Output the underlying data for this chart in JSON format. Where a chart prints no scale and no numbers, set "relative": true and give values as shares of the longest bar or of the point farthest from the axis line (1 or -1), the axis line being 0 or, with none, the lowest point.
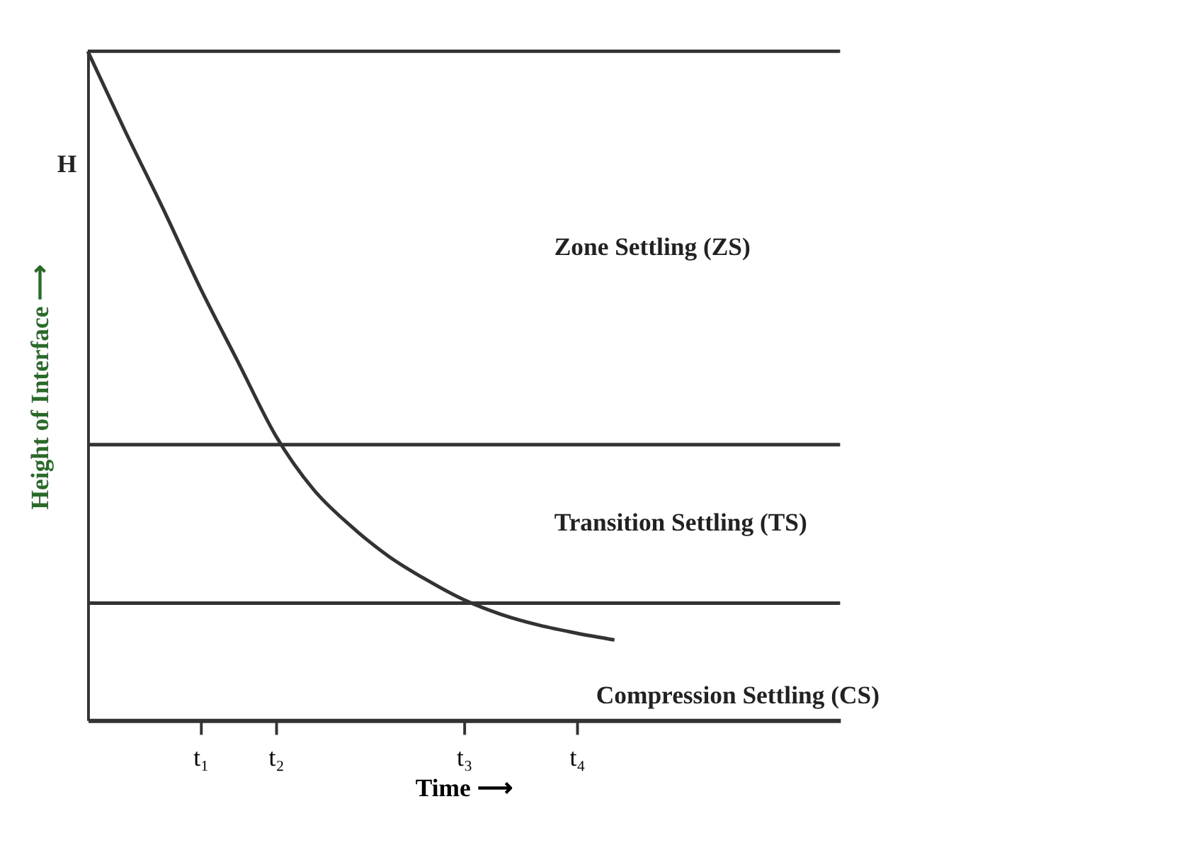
{
  "chart_data": {
    "type": "line",
    "relative": true,
    "xlabel": "Time ⟶",
    "ylabel": "Height of Interface ⟶",
    "categories": [
      null,
      null,
      null,
      "t₁",
      null,
      "t₂",
      null,
      null,
      null,
      null,
      "t₃",
      null,
      null,
      "t₄",
      null,
      null,
      null,
      null,
      null,
      null,
      null
    ],
    "values": [
      1.0,
      0.88,
      0.765,
      0.645,
      0.535,
      0.425,
      0.345,
      0.29,
      0.245,
      0.21,
      0.18,
      0.158,
      0.142,
      0.13,
      0.12,
      null,
      null,
      null,
      null,
      null,
      null
    ],
    "color": "#333333",
    "marker": "none",
    "line_style": "solid",
    "grid": false,
    "ref_lines": [
      {
        "axis": "y",
        "value": 1.0,
        "label": null,
        "color": "#333333"
      },
      {
        "axis": "y",
        "value": 0.412,
        "label": null,
        "color": "#333333"
      },
      {
        "axis": "y",
        "value": 0.175,
        "label": null,
        "color": "#333333"
      }
    ],
    "annotations": [
      "H",
      "Zone Settling (ZS)",
      "Transition Settling (TS)",
      "Compression Settling (CS)"
    ]
  }
}
